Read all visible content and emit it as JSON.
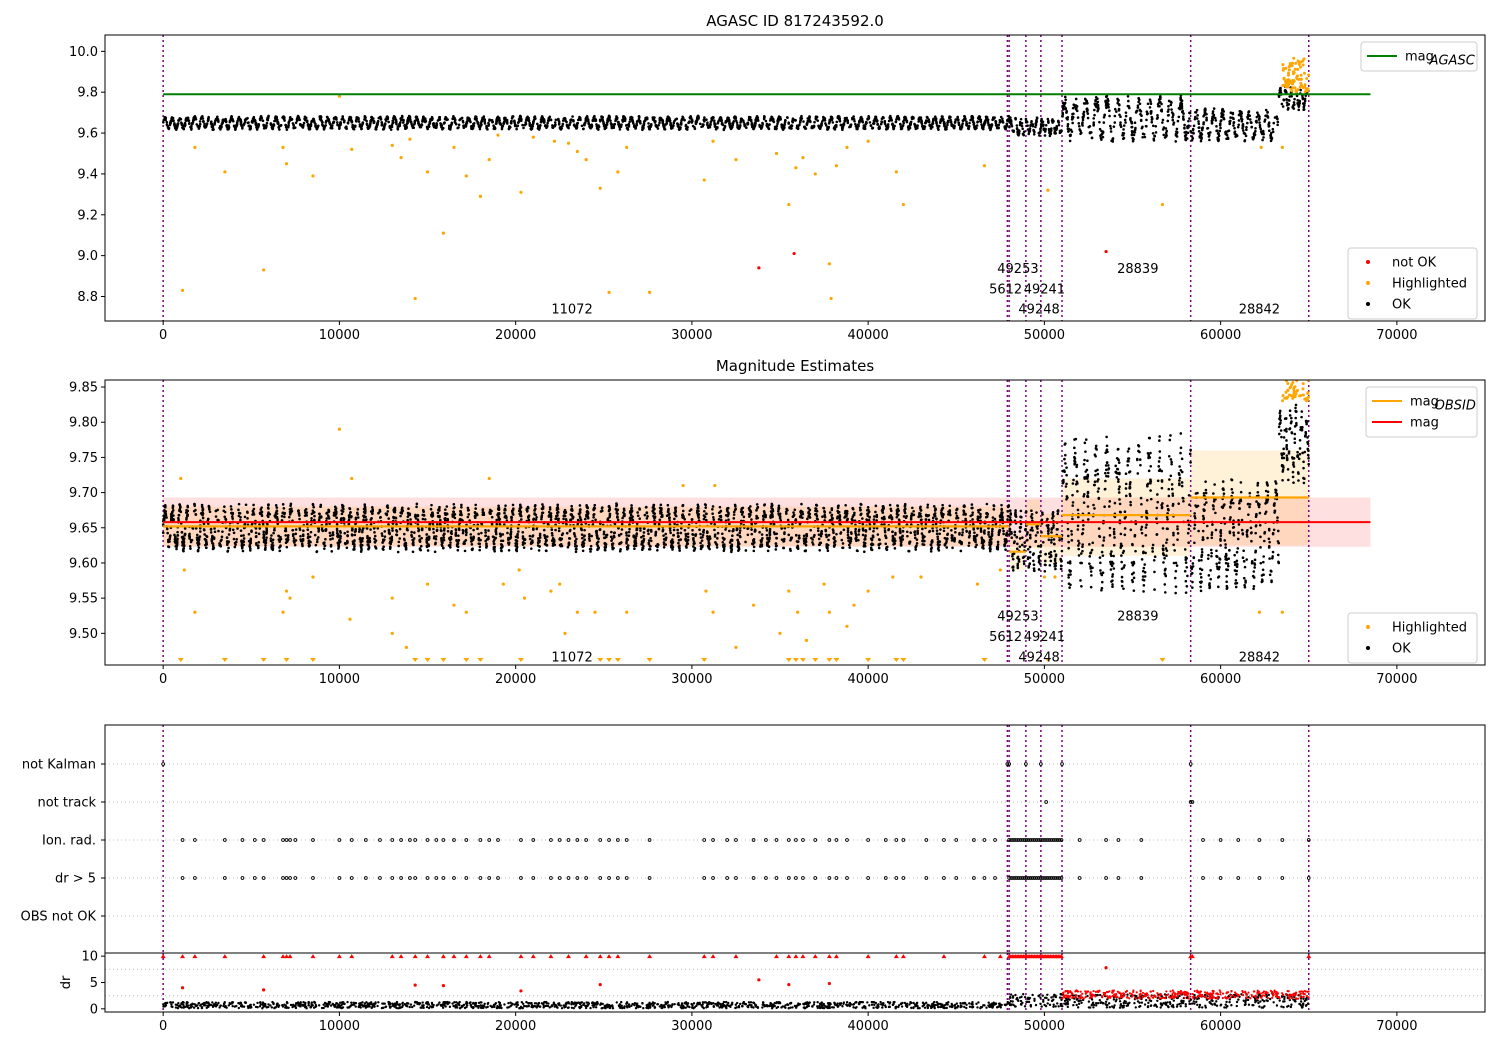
{
  "chart_data": [
    {
      "type": "scatter",
      "title": "AGASC ID 817243592.0",
      "xlim": [
        -3300,
        75000
      ],
      "ylim": [
        8.68,
        10.08
      ],
      "xticks": [
        0,
        10000,
        20000,
        30000,
        40000,
        50000,
        60000,
        70000
      ],
      "yticks": [
        8.8,
        9.0,
        9.2,
        9.4,
        9.6,
        9.8,
        10.0
      ],
      "ytick_labels": [
        "8.8",
        "9.0",
        "9.2",
        "9.4",
        "9.6",
        "9.8",
        "10.0"
      ],
      "vlines": [
        0,
        47900,
        48000,
        48950,
        49800,
        51000,
        58300,
        65000
      ],
      "hline": {
        "value": 9.79,
        "x_range": [
          0,
          68500
        ],
        "color": "#008000"
      },
      "ok_segments": [
        {
          "x": [
            0,
            48000
          ],
          "center": 9.65,
          "amp": 0.03,
          "period": 420
        },
        {
          "x": [
            48000,
            51000
          ],
          "center": 9.63,
          "amp": 0.04,
          "period": 300
        },
        {
          "x": [
            51000,
            58300
          ],
          "center": 9.67,
          "amp": 0.1,
          "period": 600
        },
        {
          "x": [
            58300,
            63300
          ],
          "center": 9.64,
          "amp": 0.07,
          "period": 500
        },
        {
          "x": [
            63300,
            65000
          ],
          "center": 9.77,
          "amp": 0.05,
          "period": 300
        }
      ],
      "highlighted_points": [
        [
          1100,
          8.83
        ],
        [
          1800,
          9.53
        ],
        [
          3500,
          9.41
        ],
        [
          5700,
          8.93
        ],
        [
          6800,
          9.53
        ],
        [
          7000,
          9.45
        ],
        [
          8500,
          9.39
        ],
        [
          10000,
          9.78
        ],
        [
          10700,
          9.52
        ],
        [
          13000,
          9.54
        ],
        [
          13500,
          9.48
        ],
        [
          14000,
          9.57
        ],
        [
          14300,
          8.79
        ],
        [
          15000,
          9.41
        ],
        [
          15900,
          9.11
        ],
        [
          16500,
          9.53
        ],
        [
          17200,
          9.39
        ],
        [
          18000,
          9.29
        ],
        [
          18500,
          9.47
        ],
        [
          19000,
          9.59
        ],
        [
          20300,
          9.31
        ],
        [
          21000,
          9.58
        ],
        [
          22200,
          9.56
        ],
        [
          23000,
          9.55
        ],
        [
          23500,
          9.51
        ],
        [
          24000,
          9.47
        ],
        [
          24800,
          9.33
        ],
        [
          25300,
          8.82
        ],
        [
          25800,
          9.41
        ],
        [
          26300,
          9.53
        ],
        [
          27600,
          8.82
        ],
        [
          30700,
          9.37
        ],
        [
          31200,
          9.56
        ],
        [
          32500,
          9.47
        ],
        [
          34800,
          9.5
        ],
        [
          35500,
          9.25
        ],
        [
          35900,
          9.43
        ],
        [
          36300,
          9.48
        ],
        [
          37000,
          9.4
        ],
        [
          37800,
          8.96
        ],
        [
          37900,
          8.79
        ],
        [
          38200,
          9.44
        ],
        [
          38800,
          9.53
        ],
        [
          40000,
          9.56
        ],
        [
          41600,
          9.41
        ],
        [
          42000,
          9.25
        ],
        [
          46600,
          9.44
        ],
        [
          50200,
          9.32
        ],
        [
          56700,
          9.25
        ],
        [
          62300,
          9.53
        ],
        [
          63500,
          9.53
        ]
      ],
      "not_ok_points": [
        [
          33800,
          8.94
        ],
        [
          35800,
          9.01
        ],
        [
          53500,
          9.02
        ]
      ],
      "obsid_labels": [
        {
          "text": "11072",
          "x": 23200,
          "y": 8.74
        },
        {
          "text": "5612",
          "x": 47800,
          "y": 8.84
        },
        {
          "text": "49253",
          "x": 48500,
          "y": 8.94
        },
        {
          "text": "49248",
          "x": 49700,
          "y": 8.74
        },
        {
          "text": "49241",
          "x": 50000,
          "y": 8.84
        },
        {
          "text": "28839",
          "x": 55300,
          "y": 8.94
        },
        {
          "text": "28842",
          "x": 62200,
          "y": 8.74
        }
      ],
      "legend_top": [
        {
          "label": "mag",
          "sub": "AGASC",
          "color": "#008000"
        }
      ],
      "legend_bottom": [
        {
          "label": "not OK",
          "color": "#ff0000"
        },
        {
          "label": "Highlighted",
          "color": "#ffa500"
        },
        {
          "label": "OK",
          "color": "#000000"
        }
      ]
    },
    {
      "type": "scatter",
      "title": "Magnitude Estimates",
      "xlim": [
        -3300,
        75000
      ],
      "ylim": [
        9.455,
        9.86
      ],
      "xticks": [
        0,
        10000,
        20000,
        30000,
        40000,
        50000,
        60000,
        70000
      ],
      "yticks": [
        9.5,
        9.55,
        9.6,
        9.65,
        9.7,
        9.75,
        9.8,
        9.85
      ],
      "ytick_labels": [
        "9.50",
        "9.55",
        "9.60",
        "9.65",
        "9.70",
        "9.75",
        "9.80",
        "9.85"
      ],
      "vlines": [
        0,
        47900,
        48000,
        48950,
        49800,
        51000,
        58300,
        65000
      ],
      "mag": {
        "value": 9.658,
        "band": [
          9.623,
          9.693
        ],
        "x_range": [
          0,
          68500
        ],
        "color": "#ff0000"
      },
      "obsid_mags": [
        {
          "x": [
            0,
            48000
          ],
          "value": 9.652,
          "band": [
            9.624,
            9.68
          ]
        },
        {
          "x": [
            48000,
            48950
          ],
          "value": 9.616,
          "band": [
            9.59,
            9.64
          ]
        },
        {
          "x": [
            48950,
            49800
          ],
          "value": 9.655,
          "band": [
            9.62,
            9.69
          ]
        },
        {
          "x": [
            49800,
            51000
          ],
          "value": 9.638,
          "band": [
            9.6,
            9.67
          ]
        },
        {
          "x": [
            51000,
            58300
          ],
          "value": 9.668,
          "band": [
            9.61,
            9.72
          ]
        },
        {
          "x": [
            58300,
            65000
          ],
          "value": 9.693,
          "band": [
            9.625,
            9.76
          ]
        }
      ],
      "ok_segments": [
        {
          "x": [
            0,
            48000
          ],
          "center": 9.65,
          "amp": 0.03,
          "period": 420
        },
        {
          "x": [
            48000,
            51000
          ],
          "center": 9.63,
          "amp": 0.04,
          "period": 300
        },
        {
          "x": [
            51000,
            58300
          ],
          "center": 9.67,
          "amp": 0.1,
          "period": 600
        },
        {
          "x": [
            58300,
            63300
          ],
          "center": 9.64,
          "amp": 0.07,
          "period": 500
        },
        {
          "x": [
            63300,
            65000
          ],
          "center": 9.77,
          "amp": 0.05,
          "period": 300
        }
      ],
      "highlighted_points": [
        [
          1000,
          9.72
        ],
        [
          1200,
          9.59
        ],
        [
          1800,
          9.53
        ],
        [
          7000,
          9.56
        ],
        [
          7200,
          9.55
        ],
        [
          6800,
          9.53
        ],
        [
          8500,
          9.58
        ],
        [
          10000,
          9.79
        ],
        [
          10700,
          9.72
        ],
        [
          10600,
          9.52
        ],
        [
          13000,
          9.55
        ],
        [
          13000,
          9.5
        ],
        [
          13800,
          9.48
        ],
        [
          15000,
          9.57
        ],
        [
          16500,
          9.54
        ],
        [
          17200,
          9.53
        ],
        [
          18500,
          9.72
        ],
        [
          19300,
          9.57
        ],
        [
          20200,
          9.59
        ],
        [
          20500,
          9.55
        ],
        [
          22000,
          9.56
        ],
        [
          22500,
          9.57
        ],
        [
          22800,
          9.5
        ],
        [
          23500,
          9.53
        ],
        [
          24500,
          9.53
        ],
        [
          26300,
          9.53
        ],
        [
          29500,
          9.71
        ],
        [
          30800,
          9.56
        ],
        [
          31300,
          9.71
        ],
        [
          31200,
          9.53
        ],
        [
          32500,
          9.48
        ],
        [
          33500,
          9.54
        ],
        [
          35000,
          9.5
        ],
        [
          35500,
          9.56
        ],
        [
          36000,
          9.53
        ],
        [
          36500,
          9.49
        ],
        [
          37500,
          9.57
        ],
        [
          37800,
          9.53
        ],
        [
          38800,
          9.51
        ],
        [
          39200,
          9.54
        ],
        [
          40000,
          9.56
        ],
        [
          41400,
          9.58
        ],
        [
          43000,
          9.58
        ],
        [
          46200,
          9.57
        ],
        [
          47500,
          9.59
        ],
        [
          50000,
          9.58
        ],
        [
          50600,
          9.58
        ],
        [
          62200,
          9.53
        ],
        [
          63500,
          9.53
        ]
      ],
      "clipped_x": [
        1000,
        3500,
        5700,
        7000,
        8500,
        14300,
        15000,
        15900,
        17200,
        18000,
        20300,
        24800,
        25300,
        25800,
        27600,
        30700,
        35500,
        35900,
        36300,
        37000,
        37800,
        38200,
        40000,
        41600,
        42000,
        46600,
        50200,
        56700
      ],
      "obsid_labels": [
        {
          "text": "11072",
          "x": 23200,
          "y": 9.467
        },
        {
          "text": "5612",
          "x": 47800,
          "y": 9.496
        },
        {
          "text": "49253",
          "x": 48500,
          "y": 9.525
        },
        {
          "text": "49248",
          "x": 49700,
          "y": 9.467
        },
        {
          "text": "49241",
          "x": 50000,
          "y": 9.496
        },
        {
          "text": "28839",
          "x": 55300,
          "y": 9.525
        },
        {
          "text": "28842",
          "x": 62200,
          "y": 9.467
        }
      ],
      "legend_top": [
        {
          "label": "mag",
          "sub": "OBSID",
          "color": "#ffa500"
        },
        {
          "label": "mag",
          "sub": "",
          "color": "#ff0000"
        }
      ],
      "legend_bottom": [
        {
          "label": "Highlighted",
          "color": "#ffa500"
        },
        {
          "label": "OK",
          "color": "#000000"
        }
      ]
    },
    {
      "type": "scatter",
      "xlim": [
        -3300,
        75000
      ],
      "categories": [
        "not Kalman",
        "not track",
        "Ion. rad.",
        "dr > 5",
        "OBS not OK"
      ],
      "vlines": [
        0,
        47900,
        48000,
        48950,
        49800,
        51000,
        58300,
        65000
      ],
      "flag_x": [
        1100,
        1800,
        3500,
        4500,
        5200,
        5700,
        6800,
        7000,
        7200,
        7500,
        8500,
        10000,
        10700,
        11500,
        12300,
        13000,
        13500,
        14000,
        14300,
        15000,
        15500,
        15900,
        16500,
        17200,
        18000,
        18500,
        19000,
        20300,
        21000,
        22000,
        22500,
        23000,
        23500,
        24000,
        24800,
        25300,
        25800,
        26300,
        27600,
        30700,
        31200,
        32000,
        32500,
        33500,
        34200,
        34800,
        35500,
        35900,
        36300,
        37000,
        37800,
        38200,
        38800,
        40000,
        41000,
        41600,
        42000,
        43300,
        44300,
        45000,
        46000,
        46600,
        47200,
        52000,
        53500,
        54200,
        55500,
        59000,
        60000,
        61000,
        62200,
        63500,
        65000
      ],
      "dense_flag_range": [
        48000,
        51000
      ],
      "not_kalman_x": [
        0,
        47900,
        48000,
        48950,
        49800,
        51000,
        58300
      ],
      "not_track_x": [
        50100,
        58300,
        58400
      ]
    },
    {
      "type": "scatter",
      "ylabel": "dr",
      "xlim": [
        -3300,
        75000
      ],
      "ylim": [
        -0.6,
        10.6
      ],
      "xticks": [
        0,
        10000,
        20000,
        30000,
        40000,
        50000,
        60000,
        70000
      ],
      "yticks": [
        0,
        5,
        10
      ],
      "ytick_labels": [
        "0",
        "5",
        "10"
      ],
      "vlines": [
        0,
        47900,
        48000,
        48950,
        49800,
        51000,
        58300,
        65000
      ],
      "dr_segments": [
        {
          "x": [
            0,
            48000
          ],
          "center": 0.7,
          "spread": 0.6
        },
        {
          "x": [
            48000,
            51000
          ],
          "center": 1.6,
          "spread": 1.2
        },
        {
          "x": [
            51000,
            65000
          ],
          "center": 1.5,
          "spread": 1.3
        }
      ],
      "red_band": {
        "x": [
          51000,
          65000
        ],
        "center": 2.4,
        "spread": 1.6
      },
      "clipped_x": [
        0,
        1100,
        1800,
        3500,
        5700,
        6800,
        7000,
        7200,
        8500,
        10000,
        10700,
        13000,
        13500,
        14300,
        15000,
        15900,
        16500,
        17200,
        18000,
        18500,
        20300,
        21000,
        22000,
        23000,
        24000,
        24800,
        25300,
        25800,
        27600,
        30700,
        31200,
        32500,
        34800,
        35500,
        35900,
        36300,
        37000,
        37800,
        38200,
        40000,
        41600,
        42000,
        44300,
        46600,
        47500,
        58300,
        58400,
        65000
      ],
      "dense_clip_range": [
        48000,
        51000
      ],
      "scattered_red": [
        [
          1100,
          4.0
        ],
        [
          5700,
          3.6
        ],
        [
          14300,
          4.5
        ],
        [
          15900,
          4.4
        ],
        [
          20300,
          3.4
        ],
        [
          24800,
          4.6
        ],
        [
          33800,
          5.5
        ],
        [
          35500,
          4.6
        ],
        [
          37800,
          4.8
        ],
        [
          53500,
          7.8
        ]
      ]
    }
  ]
}
